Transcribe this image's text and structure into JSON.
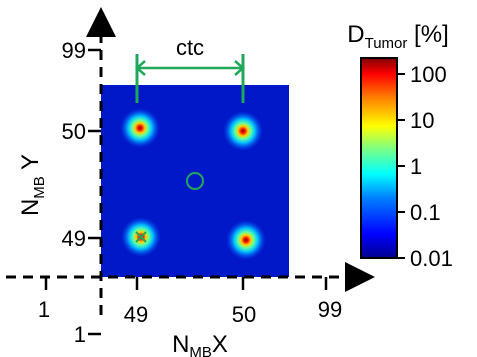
{
  "figure": {
    "ctc_label": "ctc",
    "y_axis": {
      "name_main": "N",
      "name_sub": "MB",
      "name_suffix": " Y",
      "ticks": [
        "99",
        "50",
        "49",
        "1"
      ]
    },
    "x_axis": {
      "name_main": "N",
      "name_sub": "MB",
      "name_suffix": "X",
      "ticks": [
        "1",
        "49",
        "50",
        "99"
      ]
    },
    "colorbar": {
      "title_main": "D",
      "title_sub": "Tumor",
      "title_unit": " [%]",
      "ticks": [
        "100",
        "10",
        "1",
        "0.1",
        "0.01"
      ],
      "colors": [
        "#00008f",
        "#0000ff",
        "#0080ff",
        "#00ffff",
        "#80ff80",
        "#ffff00",
        "#ff8000",
        "#ff0000",
        "#800000"
      ]
    },
    "map": {
      "background_color": "#0018c8",
      "spot_colors": [
        "#7a0000",
        "#ff2000",
        "#ffd000",
        "#60ffa0",
        "#00c0ff",
        "#0040ff"
      ],
      "marker_color": "#1fa85a"
    }
  }
}
